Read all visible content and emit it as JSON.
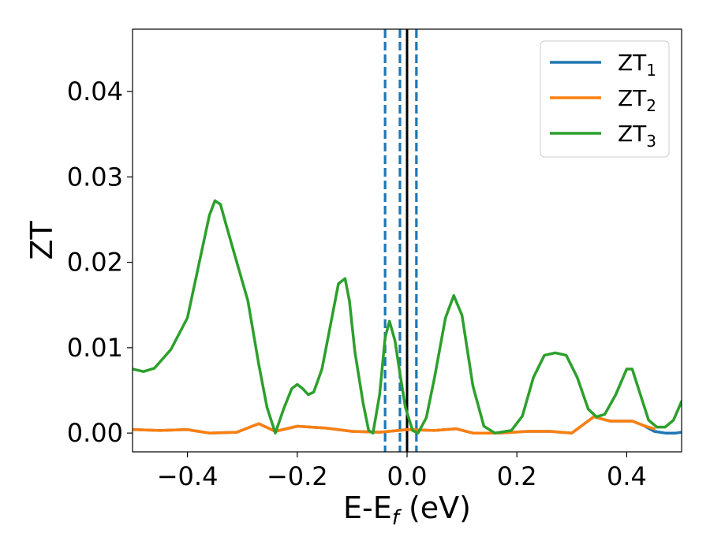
{
  "chart_data": {
    "type": "line",
    "title": "",
    "xlabel": {
      "main": "E-E",
      "sub": "f",
      "unit": " (eV)"
    },
    "ylabel": "ZT",
    "xlim": [
      -0.5,
      0.5
    ],
    "ylim": [
      -0.0022,
      0.0473
    ],
    "xticks": [
      -0.4,
      -0.2,
      0.0,
      0.2,
      0.4
    ],
    "xtick_labels": [
      "−0.4",
      "−0.2",
      "0.0",
      "0.2",
      "0.4"
    ],
    "yticks": [
      0.0,
      0.01,
      0.02,
      0.03,
      0.04
    ],
    "ytick_labels": [
      "0.00",
      "0.01",
      "0.02",
      "0.03",
      "0.04"
    ],
    "grid": false,
    "legend_position": "top-right",
    "vlines": [
      {
        "x": -0.04,
        "style": "dashed",
        "color": "#1f77b4"
      },
      {
        "x": -0.013,
        "style": "dashed",
        "color": "#1f77b4"
      },
      {
        "x": 0.0,
        "style": "solid",
        "color": "#000000"
      },
      {
        "x": 0.017,
        "style": "dashed",
        "color": "#1f77b4"
      }
    ],
    "series": [
      {
        "name": "ZT",
        "sub": "1",
        "color": "#1f77b4",
        "points": [
          [
            -0.5,
            0.0004
          ],
          [
            -0.45,
            0.0003
          ],
          [
            -0.4,
            0.0004
          ],
          [
            -0.36,
            0.0
          ],
          [
            -0.31,
            0.0001
          ],
          [
            -0.27,
            0.0011
          ],
          [
            -0.24,
            0.0002
          ],
          [
            -0.2,
            0.0008
          ],
          [
            -0.15,
            0.0006
          ],
          [
            -0.1,
            0.0002
          ],
          [
            -0.05,
            0.0001
          ],
          [
            0.0,
            0.0004
          ],
          [
            0.05,
            0.0003
          ],
          [
            0.09,
            0.0005
          ],
          [
            0.12,
            0.0
          ],
          [
            0.17,
            0.0
          ],
          [
            0.22,
            0.0002
          ],
          [
            0.26,
            0.0002
          ],
          [
            0.3,
            0.0
          ],
          [
            0.34,
            0.0019
          ],
          [
            0.37,
            0.0014
          ],
          [
            0.41,
            0.0014
          ],
          [
            0.43,
            0.0009
          ],
          [
            0.45,
            0.0002
          ],
          [
            0.47,
            0.0
          ],
          [
            0.49,
            0.0
          ],
          [
            0.5,
            0.0001
          ]
        ]
      },
      {
        "name": "ZT",
        "sub": "2",
        "color": "#ff7f0e",
        "points": [
          [
            -0.5,
            0.0004
          ],
          [
            -0.45,
            0.0003
          ],
          [
            -0.4,
            0.0004
          ],
          [
            -0.36,
            0.0
          ],
          [
            -0.31,
            0.0001
          ],
          [
            -0.27,
            0.0011
          ],
          [
            -0.24,
            0.0002
          ],
          [
            -0.2,
            0.0008
          ],
          [
            -0.15,
            0.0006
          ],
          [
            -0.1,
            0.0002
          ],
          [
            -0.05,
            0.0001
          ],
          [
            0.0,
            0.0004
          ],
          [
            0.05,
            0.0003
          ],
          [
            0.09,
            0.0005
          ],
          [
            0.12,
            0.0
          ],
          [
            0.17,
            0.0
          ],
          [
            0.22,
            0.0002
          ],
          [
            0.26,
            0.0002
          ],
          [
            0.3,
            0.0
          ],
          [
            0.34,
            0.0019
          ],
          [
            0.37,
            0.0014
          ],
          [
            0.41,
            0.0014
          ],
          [
            0.43,
            0.0009
          ],
          [
            0.45,
            0.0005
          ]
        ]
      },
      {
        "name": "ZT",
        "sub": "3",
        "color": "#2ca02c",
        "points": [
          [
            -0.5,
            0.0075
          ],
          [
            -0.48,
            0.0072
          ],
          [
            -0.46,
            0.0076
          ],
          [
            -0.43,
            0.0098
          ],
          [
            -0.4,
            0.0135
          ],
          [
            -0.38,
            0.0195
          ],
          [
            -0.36,
            0.0255
          ],
          [
            -0.35,
            0.0272
          ],
          [
            -0.34,
            0.0268
          ],
          [
            -0.33,
            0.0245
          ],
          [
            -0.31,
            0.02
          ],
          [
            -0.29,
            0.0155
          ],
          [
            -0.27,
            0.008
          ],
          [
            -0.255,
            0.003
          ],
          [
            -0.24,
            0.0
          ],
          [
            -0.225,
            0.0028
          ],
          [
            -0.21,
            0.0052
          ],
          [
            -0.2,
            0.0057
          ],
          [
            -0.19,
            0.0052
          ],
          [
            -0.18,
            0.0045
          ],
          [
            -0.17,
            0.0048
          ],
          [
            -0.155,
            0.0075
          ],
          [
            -0.14,
            0.0125
          ],
          [
            -0.125,
            0.0175
          ],
          [
            -0.113,
            0.0181
          ],
          [
            -0.105,
            0.0155
          ],
          [
            -0.095,
            0.0095
          ],
          [
            -0.08,
            0.0035
          ],
          [
            -0.07,
            0.0003
          ],
          [
            -0.062,
            0.0
          ],
          [
            -0.05,
            0.0045
          ],
          [
            -0.04,
            0.0112
          ],
          [
            -0.032,
            0.0131
          ],
          [
            -0.022,
            0.0108
          ],
          [
            -0.012,
            0.0066
          ],
          [
            -0.003,
            0.003
          ],
          [
            0.01,
            0.0003
          ],
          [
            0.02,
            0.0
          ],
          [
            0.035,
            0.0018
          ],
          [
            0.05,
            0.0065
          ],
          [
            0.07,
            0.0135
          ],
          [
            0.085,
            0.0161
          ],
          [
            0.1,
            0.0138
          ],
          [
            0.12,
            0.0055
          ],
          [
            0.14,
            0.0008
          ],
          [
            0.16,
            0.0
          ],
          [
            0.19,
            0.0003
          ],
          [
            0.21,
            0.002
          ],
          [
            0.23,
            0.0065
          ],
          [
            0.25,
            0.0091
          ],
          [
            0.27,
            0.0094
          ],
          [
            0.29,
            0.0091
          ],
          [
            0.31,
            0.0065
          ],
          [
            0.33,
            0.0028
          ],
          [
            0.345,
            0.0019
          ],
          [
            0.36,
            0.0022
          ],
          [
            0.38,
            0.0045
          ],
          [
            0.4,
            0.0075
          ],
          [
            0.41,
            0.0075
          ],
          [
            0.425,
            0.0045
          ],
          [
            0.44,
            0.0015
          ],
          [
            0.455,
            0.0007
          ],
          [
            0.47,
            0.0007
          ],
          [
            0.485,
            0.0015
          ],
          [
            0.5,
            0.0037
          ]
        ]
      }
    ]
  }
}
